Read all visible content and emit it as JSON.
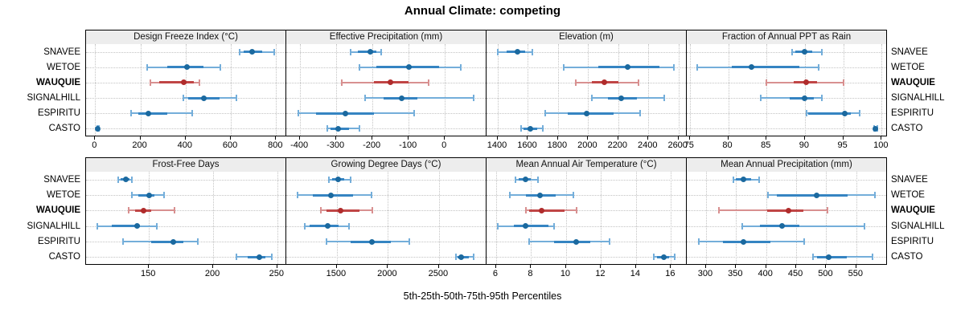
{
  "title": "Annual Climate: competing",
  "caption": "5th-25th-50th-75th-95th Percentiles",
  "sites": [
    {
      "name": "SNAVEE",
      "highlight": false
    },
    {
      "name": "WETOE",
      "highlight": false
    },
    {
      "name": "WAUQUIE",
      "highlight": true
    },
    {
      "name": "SIGNALHILL",
      "highlight": false
    },
    {
      "name": "ESPIRITU",
      "highlight": false
    },
    {
      "name": "CASTO",
      "highlight": false
    }
  ],
  "colors": {
    "normal_whisker": "#74aeda",
    "normal_band": "#3584c2",
    "normal_dot": "#1b699f",
    "highlight_whisker": "#d89090",
    "highlight_band": "#c04545",
    "highlight_dot": "#b02c2c",
    "header_bg": "#ededed",
    "grid": "#c3c3c3",
    "border": "#000000"
  },
  "chart_data": {
    "type": "dotplot-intervals",
    "note": "values per site are [5th,25th,50th,75th,95th] percentiles",
    "percentiles": [
      5,
      25,
      50,
      75,
      95
    ],
    "panels": [
      {
        "title": "Design Freeze Index (°C)",
        "row": 0,
        "col": 0,
        "domain": [
          -40,
          845
        ],
        "ticks": [
          0,
          200,
          400,
          600,
          800
        ],
        "series": {
          "SNAVEE": [
            640,
            655,
            695,
            740,
            790
          ],
          "WETOE": [
            230,
            320,
            405,
            480,
            555
          ],
          "WAUQUIE": [
            245,
            285,
            393,
            435,
            460
          ],
          "SIGNALHILL": [
            390,
            410,
            480,
            550,
            625
          ],
          "ESPIRITU": [
            160,
            190,
            237,
            320,
            430
          ],
          "CASTO": [
            8,
            10,
            12,
            14,
            16
          ]
        }
      },
      {
        "title": "Effective Precipitation (mm)",
        "row": 0,
        "col": 1,
        "domain": [
          -438,
          115
        ],
        "ticks": [
          -400,
          -300,
          -200,
          -100,
          0
        ],
        "series": {
          "SNAVEE": [
            -260,
            -240,
            -205,
            -190,
            -175
          ],
          "WETOE": [
            -235,
            -190,
            -100,
            -15,
            45
          ],
          "WAUQUIE": [
            -285,
            -195,
            -150,
            -100,
            -45
          ],
          "SIGNALHILL": [
            -220,
            -170,
            -120,
            -75,
            80
          ],
          "ESPIRITU": [
            -405,
            -355,
            -275,
            -195,
            -85
          ],
          "CASTO": [
            -325,
            -315,
            -295,
            -265,
            -235
          ]
        }
      },
      {
        "title": "Elevation (m)",
        "row": 0,
        "col": 2,
        "domain": [
          1325,
          2655
        ],
        "ticks": [
          1400,
          1600,
          1800,
          2000,
          2200,
          2400,
          2600
        ],
        "series": {
          "SNAVEE": [
            1400,
            1460,
            1530,
            1580,
            1630
          ],
          "WETOE": [
            1840,
            2070,
            2265,
            2475,
            2570
          ],
          "WAUQUIE": [
            1920,
            2025,
            2110,
            2200,
            2335
          ],
          "SIGNALHILL": [
            2025,
            2130,
            2220,
            2325,
            2505
          ],
          "ESPIRITU": [
            1715,
            1865,
            1990,
            2170,
            2345
          ],
          "CASTO": [
            1555,
            1570,
            1615,
            1660,
            1700
          ]
        }
      },
      {
        "title": "Fraction of Annual PPT as Rain",
        "row": 0,
        "col": 3,
        "domain": [
          74.6,
          100.7
        ],
        "ticks": [
          75,
          80,
          85,
          90,
          95,
          100
        ],
        "series": {
          "SNAVEE": [
            88.3,
            88.7,
            90.0,
            91.0,
            92.2
          ],
          "WETOE": [
            76.0,
            80.5,
            83.0,
            89.3,
            91.8
          ],
          "WAUQUIE": [
            85.0,
            88.5,
            90.2,
            91.6,
            95.0
          ],
          "SIGNALHILL": [
            84.2,
            88.0,
            90.0,
            91.2,
            92.2
          ],
          "ESPIRITU": [
            90.2,
            90.4,
            95.2,
            96.0,
            97.1
          ],
          "CASTO": [
            99.0,
            99.1,
            99.2,
            99.3,
            99.4
          ]
        }
      },
      {
        "title": "Frost-Free Days",
        "row": 1,
        "col": 0,
        "domain": [
          101,
          257
        ],
        "ticks": [
          150,
          200,
          250
        ],
        "series": {
          "SNAVEE": [
            126,
            128,
            132,
            135,
            137
          ],
          "WETOE": [
            137,
            142,
            150,
            154,
            162
          ],
          "WAUQUIE": [
            134,
            139,
            146,
            152,
            170
          ],
          "SIGNALHILL": [
            110,
            121,
            141,
            143,
            156
          ],
          "ESPIRITU": [
            130,
            152,
            169,
            177,
            188
          ],
          "CASTO": [
            218,
            227,
            236,
            241,
            246
          ]
        }
      },
      {
        "title": "Growing Degree Days (°C)",
        "row": 1,
        "col": 1,
        "domain": [
          1005,
          2965
        ],
        "ticks": [
          1500,
          2000,
          2500
        ],
        "series": {
          "SNAVEE": [
            1420,
            1450,
            1515,
            1570,
            1635
          ],
          "WETOE": [
            1115,
            1265,
            1440,
            1660,
            1840
          ],
          "WAUQUIE": [
            1345,
            1400,
            1540,
            1720,
            1845
          ],
          "SIGNALHILL": [
            1185,
            1230,
            1410,
            1520,
            1620
          ],
          "ESPIRITU": [
            1400,
            1635,
            1845,
            2025,
            2210
          ],
          "CASTO": [
            2665,
            2680,
            2720,
            2790,
            2840
          ]
        }
      },
      {
        "title": "Mean Annual Air Temperature (°C)",
        "row": 1,
        "col": 2,
        "domain": [
          5.45,
          16.9
        ],
        "ticks": [
          6,
          8,
          10,
          12,
          14,
          16
        ],
        "series": {
          "SNAVEE": [
            7.1,
            7.3,
            7.7,
            8.0,
            8.4
          ],
          "WETOE": [
            6.8,
            7.7,
            8.5,
            9.4,
            10.4
          ],
          "WAUQUIE": [
            7.7,
            7.9,
            8.6,
            9.9,
            10.6
          ],
          "SIGNALHILL": [
            6.1,
            7.0,
            7.7,
            9.0,
            9.3
          ],
          "ESPIRITU": [
            7.9,
            9.3,
            10.6,
            11.4,
            12.5
          ],
          "CASTO": [
            15.0,
            15.2,
            15.6,
            15.9,
            16.2
          ]
        }
      },
      {
        "title": "Mean Annual Precipitation (mm)",
        "row": 1,
        "col": 3,
        "domain": [
          268,
          601
        ],
        "ticks": [
          300,
          350,
          400,
          450,
          500,
          550
        ],
        "series": {
          "SNAVEE": [
            345,
            350,
            362,
            375,
            388
          ],
          "WETOE": [
            403,
            418,
            484,
            536,
            581
          ],
          "WAUQUIE": [
            321,
            402,
            437,
            462,
            502
          ],
          "SIGNALHILL": [
            360,
            390,
            426,
            455,
            563
          ],
          "ESPIRITU": [
            288,
            328,
            362,
            407,
            463
          ],
          "CASTO": [
            478,
            485,
            504,
            534,
            577
          ]
        }
      }
    ]
  }
}
